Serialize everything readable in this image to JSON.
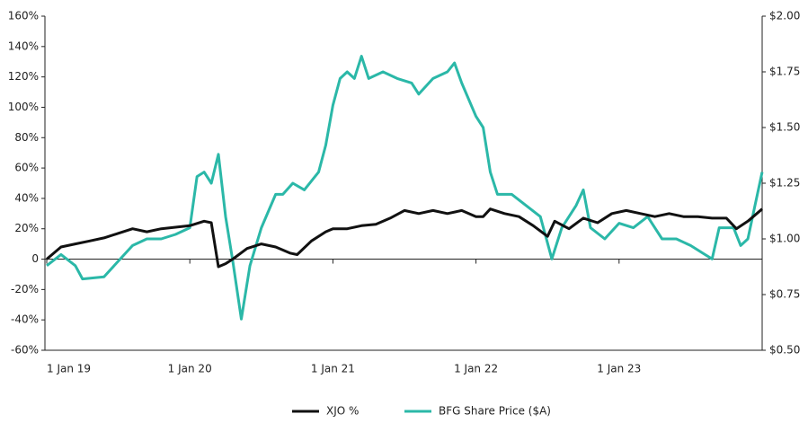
{
  "chart_data": {
    "type": "line",
    "xlim": [
      2019,
      2024
    ],
    "xticks": [
      {
        "value": 2019,
        "label": "1 Jan 19"
      },
      {
        "value": 2020,
        "label": "1 Jan 20"
      },
      {
        "value": 2021,
        "label": "1 Jan 21"
      },
      {
        "value": 2022,
        "label": "1 Jan 22"
      },
      {
        "value": 2023,
        "label": "1 Jan 23"
      }
    ],
    "ylim": [
      -60,
      160
    ],
    "yticks": [
      {
        "value": -60,
        "label": "-60%"
      },
      {
        "value": -40,
        "label": "-40%"
      },
      {
        "value": -20,
        "label": "-20%"
      },
      0,
      {
        "value": 20,
        "label": "20%"
      },
      {
        "value": 40,
        "label": "40%"
      },
      {
        "value": 60,
        "label": "60%"
      },
      {
        "value": 80,
        "label": "80%"
      },
      {
        "value": 100,
        "label": "100%"
      },
      {
        "value": 120,
        "label": "120%"
      },
      {
        "value": 140,
        "label": "140%"
      },
      {
        "value": 160,
        "label": "160%"
      }
    ],
    "y2lim": [
      0.5,
      2.0
    ],
    "y2ticks": [
      {
        "value": 0.5,
        "label": "$0.50"
      },
      {
        "value": 0.75,
        "label": "$0.75"
      },
      {
        "value": 1.0,
        "label": "$1.00"
      },
      {
        "value": 1.25,
        "label": "$1.25"
      },
      {
        "value": 1.5,
        "label": "$1.50"
      },
      {
        "value": 1.75,
        "label": "$1.75"
      },
      {
        "value": 2.0,
        "label": "$2.00"
      }
    ],
    "legend": "bottom",
    "series": [
      {
        "name": "XJO %",
        "color": "#111111",
        "axis": "y",
        "x": [
          2019,
          2019.1,
          2019.2,
          2019.3,
          2019.4,
          2019.5,
          2019.6,
          2019.7,
          2019.8,
          2019.9,
          2020.0,
          2020.1,
          2020.15,
          2020.2,
          2020.25,
          2020.3,
          2020.4,
          2020.5,
          2020.6,
          2020.7,
          2020.75,
          2020.85,
          2020.95,
          2021.0,
          2021.1,
          2021.2,
          2021.3,
          2021.4,
          2021.5,
          2021.6,
          2021.7,
          2021.8,
          2021.9,
          2022.0,
          2022.05,
          2022.1,
          2022.2,
          2022.3,
          2022.4,
          2022.5,
          2022.55,
          2022.65,
          2022.75,
          2022.85,
          2022.95,
          2023.05,
          2023.15,
          2023.25,
          2023.35,
          2023.45,
          2023.55,
          2023.65,
          2023.75,
          2023.82,
          2023.9,
          2024.0
        ],
        "values": [
          0,
          8,
          10,
          12,
          14,
          17,
          20,
          18,
          20,
          21,
          22,
          25,
          24,
          -5,
          -3,
          0,
          7,
          10,
          8,
          4,
          3,
          12,
          18,
          20,
          20,
          22,
          23,
          27,
          32,
          30,
          32,
          30,
          32,
          28,
          28,
          33,
          30,
          28,
          22,
          15,
          25,
          20,
          27,
          24,
          30,
          32,
          30,
          28,
          30,
          28,
          28,
          27,
          27,
          20,
          25,
          33
        ]
      },
      {
        "name": "BFG Share Price ($A)",
        "color": "#2bb8a8",
        "axis": "y2",
        "x": [
          2019,
          2019.1,
          2019.2,
          2019.25,
          2019.4,
          2019.5,
          2019.6,
          2019.7,
          2019.8,
          2019.9,
          2020.0,
          2020.05,
          2020.1,
          2020.15,
          2020.2,
          2020.25,
          2020.3,
          2020.36,
          2020.42,
          2020.5,
          2020.6,
          2020.65,
          2020.72,
          2020.8,
          2020.9,
          2020.95,
          2021.0,
          2021.05,
          2021.1,
          2021.15,
          2021.2,
          2021.25,
          2021.35,
          2021.45,
          2021.55,
          2021.6,
          2021.7,
          2021.8,
          2021.85,
          2021.9,
          2022.0,
          2022.05,
          2022.1,
          2022.15,
          2022.25,
          2022.35,
          2022.45,
          2022.53,
          2022.6,
          2022.7,
          2022.75,
          2022.8,
          2022.9,
          2023.0,
          2023.1,
          2023.2,
          2023.3,
          2023.4,
          2023.5,
          2023.6,
          2023.65,
          2023.7,
          2023.8,
          2023.85,
          2023.9,
          2023.95,
          2024.0
        ],
        "values": [
          0.88,
          0.93,
          0.88,
          0.82,
          0.83,
          0.9,
          0.97,
          1.0,
          1.0,
          1.02,
          1.05,
          1.28,
          1.3,
          1.25,
          1.38,
          1.1,
          0.9,
          0.64,
          0.88,
          1.05,
          1.2,
          1.2,
          1.25,
          1.22,
          1.3,
          1.42,
          1.6,
          1.72,
          1.75,
          1.72,
          1.82,
          1.72,
          1.75,
          1.72,
          1.7,
          1.65,
          1.72,
          1.75,
          1.79,
          1.7,
          1.55,
          1.5,
          1.3,
          1.2,
          1.2,
          1.15,
          1.1,
          0.91,
          1.05,
          1.15,
          1.22,
          1.05,
          1.0,
          1.07,
          1.05,
          1.1,
          1.0,
          1.0,
          0.97,
          0.93,
          0.91,
          1.05,
          1.05,
          0.97,
          1.0,
          1.15,
          1.3
        ]
      }
    ]
  }
}
